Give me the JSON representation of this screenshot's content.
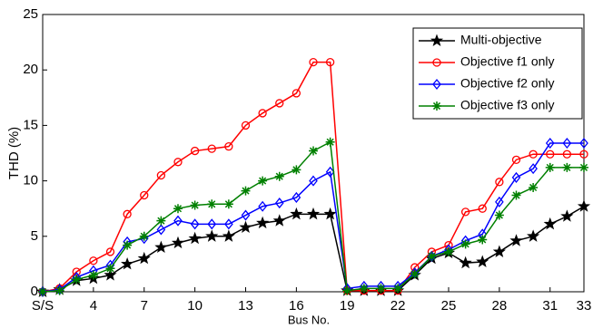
{
  "chart_data": {
    "type": "line",
    "x_label": "Bus No.",
    "y_label": "THD (%)",
    "x": [
      1,
      2,
      3,
      4,
      5,
      6,
      7,
      8,
      9,
      10,
      11,
      12,
      13,
      14,
      15,
      16,
      17,
      18,
      19,
      20,
      21,
      22,
      23,
      24,
      25,
      26,
      27,
      28,
      29,
      30,
      31,
      32,
      33
    ],
    "xlim": [
      1,
      33
    ],
    "xticks": [
      {
        "value": 1,
        "label": "S/S"
      },
      4,
      7,
      10,
      13,
      16,
      19,
      22,
      25,
      28,
      31,
      33
    ],
    "ylim": [
      0,
      25
    ],
    "yticks": [
      0,
      5,
      10,
      15,
      20,
      25
    ],
    "legend": "upper right",
    "series": [
      {
        "name": "Multi-objective",
        "color": "#000000",
        "marker": "star",
        "values": [
          0,
          0.2,
          1,
          1.2,
          1.5,
          2.5,
          3,
          4,
          4.4,
          4.8,
          5,
          5,
          5.8,
          6.2,
          6.4,
          7,
          7,
          7,
          0.1,
          0.1,
          0.1,
          0.1,
          1.5,
          3,
          3.5,
          2.6,
          2.7,
          3.6,
          4.6,
          5,
          6.1,
          6.8,
          7.7
        ]
      },
      {
        "name": "Objective f1 only",
        "color": "#ff0000",
        "marker": "circle",
        "values": [
          0,
          0.3,
          1.8,
          2.8,
          3.6,
          7,
          8.7,
          10.5,
          11.7,
          12.7,
          12.9,
          13.1,
          15,
          16.1,
          17,
          17.9,
          20.7,
          20.7,
          0.1,
          0.1,
          0.1,
          0.1,
          2.2,
          3.6,
          4.2,
          7.2,
          7.5,
          9.9,
          11.9,
          12.4,
          12.4,
          12.4,
          12.4
        ]
      },
      {
        "name": "Objective f2 only",
        "color": "#0000ff",
        "marker": "diamond",
        "values": [
          0,
          0.2,
          1.3,
          1.9,
          2.4,
          4.5,
          4.8,
          5.6,
          6.4,
          6.1,
          6.1,
          6.1,
          6.9,
          7.7,
          8,
          8.5,
          10,
          10.8,
          0.3,
          0.5,
          0.5,
          0.5,
          1.7,
          3.2,
          3.8,
          4.6,
          5.2,
          8.1,
          10.3,
          11.1,
          13.4,
          13.4,
          13.4
        ]
      },
      {
        "name": "Objective f3 only",
        "color": "#008000",
        "marker": "asterisk",
        "values": [
          0,
          0.1,
          1.1,
          1.5,
          2.1,
          4.2,
          5,
          6.4,
          7.5,
          7.8,
          7.9,
          7.9,
          9.1,
          10,
          10.4,
          11,
          12.7,
          13.5,
          0.1,
          0.3,
          0.3,
          0.3,
          1.6,
          3.2,
          3.6,
          4.3,
          4.7,
          6.9,
          8.7,
          9.4,
          11.2,
          11.2,
          11.2
        ]
      }
    ]
  }
}
